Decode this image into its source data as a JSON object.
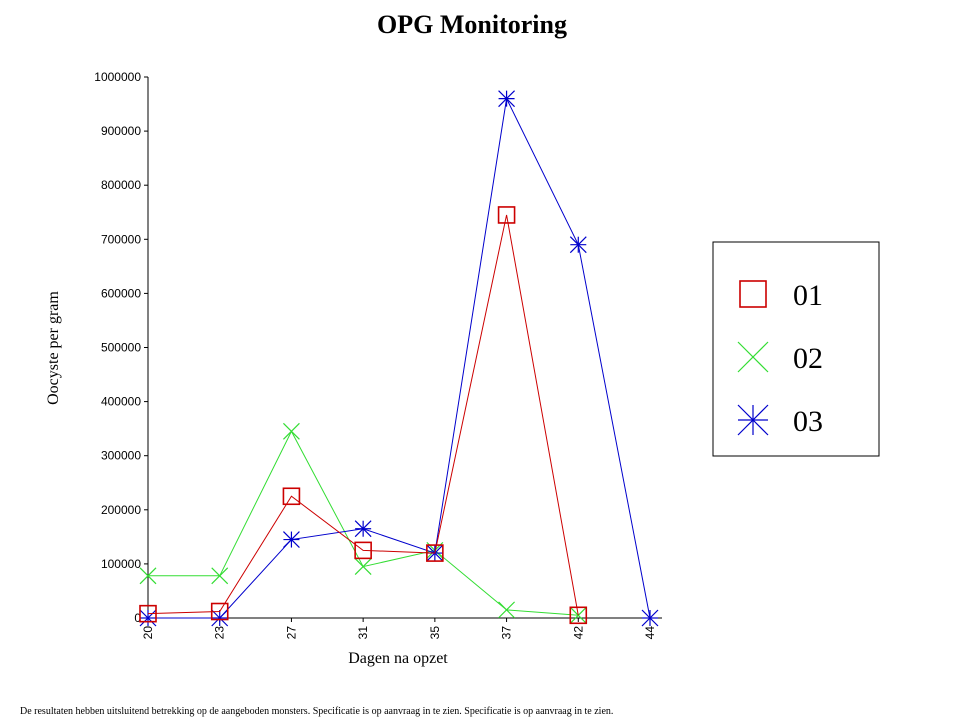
{
  "chart_data": {
    "type": "line",
    "title": "OPG Monitoring",
    "xlabel": "Dagen na opzet",
    "ylabel": "Oocyste per gram",
    "categories": [
      "20",
      "23",
      "27",
      "31",
      "35",
      "37",
      "42",
      "44"
    ],
    "yticks": [
      "0",
      "100000",
      "200000",
      "300000",
      "400000",
      "500000",
      "600000",
      "700000",
      "800000",
      "900000",
      "1000000"
    ],
    "ylim": [
      0,
      1000000
    ],
    "grid": false,
    "legend_position": "right",
    "series": [
      {
        "name": "01",
        "color": "#cc0000",
        "marker": "square",
        "values": [
          8000,
          12000,
          225000,
          125000,
          120000,
          745000,
          5000,
          null
        ]
      },
      {
        "name": "02",
        "color": "#33dd33",
        "marker": "cross",
        "values": [
          78000,
          78000,
          345000,
          95000,
          125000,
          15000,
          5000,
          null
        ]
      },
      {
        "name": "03",
        "color": "#0000cc",
        "marker": "asterisk",
        "values": [
          0,
          0,
          145000,
          165000,
          120000,
          960000,
          690000,
          0
        ]
      }
    ]
  },
  "footer_text": "De resultaten hebben uitsluitend betrekking op de aangeboden monsters. Specificatie is op aanvraag in te zien. Specificatie is op aanvraag in te zien."
}
